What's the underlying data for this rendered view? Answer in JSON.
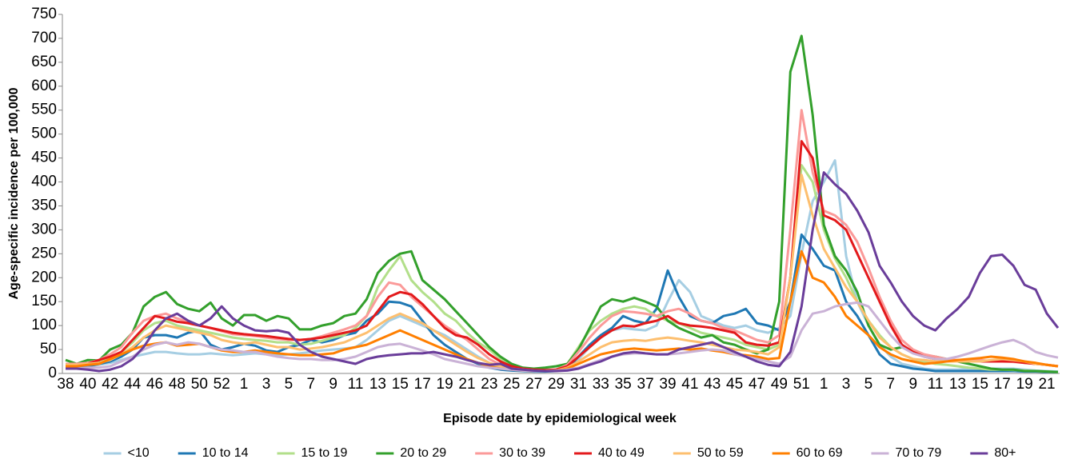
{
  "chart_data": {
    "type": "line",
    "x_label": "Episode date by epidemiological week",
    "y_label": "Age-specific incidence per 100,000",
    "categories": [
      "38",
      null,
      "40",
      null,
      "42",
      null,
      "44",
      null,
      "46",
      null,
      "48",
      null,
      "50",
      null,
      "52",
      null,
      "1",
      null,
      "3",
      null,
      "5",
      null,
      "7",
      null,
      "9",
      null,
      "11",
      null,
      "13",
      null,
      "15",
      null,
      "17",
      null,
      "19",
      null,
      "21",
      null,
      "23",
      null,
      "25",
      null,
      "27",
      null,
      "29",
      null,
      "31",
      null,
      "33",
      null,
      "35",
      null,
      "37",
      null,
      "39",
      null,
      "41",
      null,
      "43",
      null,
      "45",
      null,
      "47",
      null,
      "49",
      null,
      "51",
      null,
      "1",
      null,
      "3",
      null,
      "5",
      null,
      "7",
      null,
      "9",
      null,
      "11",
      null,
      "13",
      null,
      "15",
      null,
      "17",
      null,
      "19",
      null,
      "21",
      null
    ],
    "ylim": [
      0,
      750
    ],
    "yticks": [
      0,
      50,
      100,
      150,
      200,
      250,
      300,
      350,
      400,
      450,
      500,
      550,
      600,
      650,
      700,
      750
    ],
    "legend": "bottom",
    "series": [
      {
        "name": "<10",
        "color": "#a6cee3",
        "values": [
          10,
          12,
          15,
          18,
          22,
          28,
          35,
          40,
          45,
          45,
          42,
          40,
          40,
          42,
          40,
          38,
          40,
          42,
          40,
          38,
          40,
          42,
          45,
          48,
          50,
          52,
          55,
          70,
          90,
          110,
          120,
          110,
          100,
          90,
          80,
          65,
          50,
          35,
          22,
          12,
          8,
          6,
          5,
          5,
          6,
          12,
          30,
          55,
          75,
          90,
          95,
          92,
          90,
          100,
          150,
          195,
          170,
          120,
          110,
          100,
          95,
          100,
          90,
          85,
          95,
          120,
          250,
          360,
          400,
          445,
          245,
          150,
          100,
          60,
          35,
          20,
          15,
          10,
          8,
          8,
          8,
          10,
          10,
          10,
          10,
          10,
          8,
          6,
          5,
          4
        ]
      },
      {
        "name": "10 to 14",
        "color": "#1f78b4",
        "values": [
          12,
          12,
          15,
          20,
          25,
          35,
          50,
          75,
          80,
          80,
          75,
          85,
          90,
          60,
          50,
          55,
          62,
          58,
          48,
          45,
          55,
          60,
          70,
          65,
          70,
          80,
          85,
          110,
          125,
          150,
          148,
          140,
          110,
          80,
          60,
          45,
          30,
          20,
          12,
          8,
          6,
          5,
          4,
          4,
          5,
          10,
          35,
          60,
          80,
          95,
          120,
          110,
          105,
          135,
          215,
          160,
          120,
          110,
          105,
          120,
          125,
          135,
          105,
          100,
          90,
          150,
          290,
          260,
          225,
          215,
          150,
          120,
          80,
          40,
          20,
          15,
          10,
          8,
          5,
          5,
          5,
          5,
          5,
          5,
          5,
          5,
          4,
          4,
          3,
          3
        ]
      },
      {
        "name": "15 to 19",
        "color": "#b2df8a",
        "values": [
          20,
          18,
          22,
          25,
          30,
          45,
          65,
          90,
          105,
          110,
          100,
          95,
          90,
          85,
          80,
          75,
          72,
          70,
          68,
          65,
          65,
          60,
          62,
          68,
          75,
          80,
          95,
          120,
          180,
          215,
          245,
          195,
          170,
          150,
          125,
          110,
          85,
          65,
          50,
          30,
          15,
          10,
          7,
          6,
          8,
          20,
          55,
          90,
          110,
          125,
          135,
          140,
          135,
          120,
          110,
          105,
          95,
          85,
          80,
          75,
          70,
          60,
          55,
          50,
          60,
          200,
          435,
          400,
          300,
          240,
          200,
          150,
          110,
          80,
          55,
          40,
          30,
          25,
          20,
          18,
          15,
          12,
          10,
          8,
          8,
          7,
          6,
          5,
          4,
          3
        ]
      },
      {
        "name": "20 to 29",
        "color": "#33a02c",
        "values": [
          28,
          20,
          28,
          27,
          50,
          60,
          85,
          140,
          160,
          170,
          145,
          135,
          130,
          148,
          115,
          100,
          122,
          122,
          110,
          120,
          115,
          92,
          92,
          100,
          105,
          120,
          125,
          155,
          210,
          235,
          250,
          255,
          195,
          175,
          155,
          130,
          105,
          80,
          55,
          35,
          20,
          12,
          10,
          12,
          15,
          20,
          50,
          95,
          140,
          155,
          150,
          158,
          150,
          140,
          110,
          95,
          85,
          75,
          80,
          65,
          60,
          50,
          42,
          50,
          150,
          630,
          705,
          540,
          310,
          245,
          215,
          170,
          100,
          60,
          50,
          55,
          45,
          38,
          35,
          30,
          25,
          20,
          15,
          10,
          8,
          8,
          5,
          5,
          4,
          3
        ]
      },
      {
        "name": "30 to 39",
        "color": "#fb9a99",
        "values": [
          20,
          20,
          22,
          28,
          40,
          55,
          85,
          110,
          120,
          125,
          115,
          108,
          100,
          95,
          88,
          82,
          80,
          78,
          75,
          72,
          70,
          70,
          72,
          78,
          85,
          92,
          100,
          120,
          160,
          190,
          185,
          160,
          140,
          120,
          100,
          85,
          70,
          50,
          30,
          18,
          12,
          8,
          7,
          6,
          8,
          18,
          45,
          75,
          100,
          120,
          130,
          128,
          125,
          120,
          130,
          135,
          125,
          110,
          105,
          95,
          90,
          80,
          70,
          65,
          80,
          300,
          550,
          420,
          340,
          330,
          310,
          275,
          220,
          160,
          110,
          70,
          50,
          40,
          35,
          30,
          28,
          28,
          28,
          26,
          25,
          24,
          22,
          20,
          18,
          15
        ]
      },
      {
        "name": "40 to 49",
        "color": "#e31a1c",
        "values": [
          15,
          15,
          20,
          28,
          35,
          45,
          70,
          95,
          120,
          115,
          108,
          105,
          100,
          95,
          90,
          85,
          82,
          80,
          78,
          75,
          72,
          70,
          72,
          75,
          80,
          85,
          90,
          100,
          130,
          160,
          170,
          165,
          145,
          120,
          95,
          80,
          75,
          60,
          40,
          25,
          15,
          10,
          8,
          7,
          8,
          15,
          35,
          55,
          75,
          90,
          100,
          98,
          105,
          110,
          120,
          105,
          100,
          98,
          95,
          90,
          85,
          65,
          60,
          58,
          65,
          200,
          485,
          450,
          330,
          320,
          300,
          250,
          200,
          150,
          100,
          60,
          45,
          35,
          30,
          25,
          25,
          25,
          25,
          25,
          25,
          25,
          22,
          20,
          18,
          15
        ]
      },
      {
        "name": "50 to 59",
        "color": "#fdbf6f",
        "values": [
          18,
          18,
          20,
          22,
          28,
          40,
          55,
          75,
          90,
          100,
          95,
          90,
          85,
          80,
          70,
          65,
          62,
          65,
          60,
          55,
          55,
          50,
          52,
          55,
          60,
          65,
          75,
          85,
          100,
          115,
          125,
          115,
          105,
          90,
          75,
          60,
          45,
          32,
          22,
          15,
          10,
          8,
          6,
          5,
          6,
          12,
          25,
          40,
          55,
          65,
          68,
          70,
          68,
          72,
          75,
          72,
          68,
          65,
          60,
          55,
          50,
          48,
          45,
          40,
          55,
          200,
          415,
          330,
          260,
          220,
          180,
          150,
          110,
          75,
          55,
          40,
          30,
          28,
          25,
          25,
          25,
          25,
          25,
          28,
          30,
          28,
          25,
          20,
          18,
          15
        ]
      },
      {
        "name": "60 to 69",
        "color": "#ff7f00",
        "values": [
          15,
          15,
          18,
          20,
          30,
          40,
          50,
          58,
          62,
          65,
          58,
          60,
          62,
          55,
          48,
          45,
          45,
          48,
          45,
          42,
          40,
          38,
          38,
          40,
          42,
          50,
          55,
          60,
          70,
          80,
          90,
          80,
          70,
          60,
          50,
          40,
          30,
          22,
          15,
          10,
          8,
          6,
          5,
          5,
          6,
          10,
          20,
          30,
          40,
          45,
          50,
          52,
          50,
          48,
          50,
          52,
          50,
          52,
          48,
          45,
          40,
          38,
          35,
          30,
          32,
          150,
          255,
          200,
          190,
          160,
          120,
          100,
          80,
          55,
          40,
          30,
          25,
          20,
          22,
          25,
          28,
          30,
          32,
          35,
          33,
          30,
          25,
          22,
          18,
          15
        ]
      },
      {
        "name": "70 to 79",
        "color": "#cab2d6",
        "values": [
          10,
          10,
          12,
          12,
          15,
          25,
          35,
          50,
          60,
          65,
          60,
          65,
          62,
          55,
          50,
          48,
          45,
          45,
          40,
          35,
          32,
          30,
          30,
          28,
          28,
          30,
          35,
          45,
          55,
          60,
          62,
          55,
          48,
          40,
          30,
          25,
          20,
          15,
          12,
          10,
          8,
          6,
          5,
          5,
          6,
          8,
          12,
          20,
          28,
          35,
          40,
          42,
          42,
          40,
          40,
          42,
          45,
          48,
          50,
          48,
          40,
          35,
          30,
          25,
          20,
          35,
          90,
          125,
          130,
          140,
          145,
          148,
          140,
          110,
          80,
          55,
          42,
          35,
          30,
          30,
          35,
          42,
          50,
          58,
          65,
          70,
          60,
          45,
          38,
          33
        ]
      },
      {
        "name": "80+",
        "color": "#6a3d9a",
        "values": [
          10,
          10,
          8,
          5,
          8,
          15,
          30,
          55,
          90,
          115,
          125,
          110,
          100,
          115,
          140,
          115,
          100,
          90,
          88,
          90,
          85,
          60,
          45,
          35,
          30,
          25,
          20,
          30,
          35,
          38,
          40,
          42,
          42,
          45,
          40,
          35,
          28,
          22,
          18,
          20,
          10,
          8,
          6,
          5,
          5,
          6,
          10,
          18,
          25,
          35,
          42,
          45,
          42,
          40,
          40,
          50,
          55,
          60,
          65,
          55,
          45,
          35,
          25,
          18,
          15,
          45,
          140,
          300,
          420,
          395,
          375,
          340,
          295,
          225,
          190,
          150,
          120,
          100,
          90,
          115,
          135,
          160,
          210,
          245,
          248,
          225,
          185,
          175,
          125,
          95
        ]
      }
    ]
  }
}
